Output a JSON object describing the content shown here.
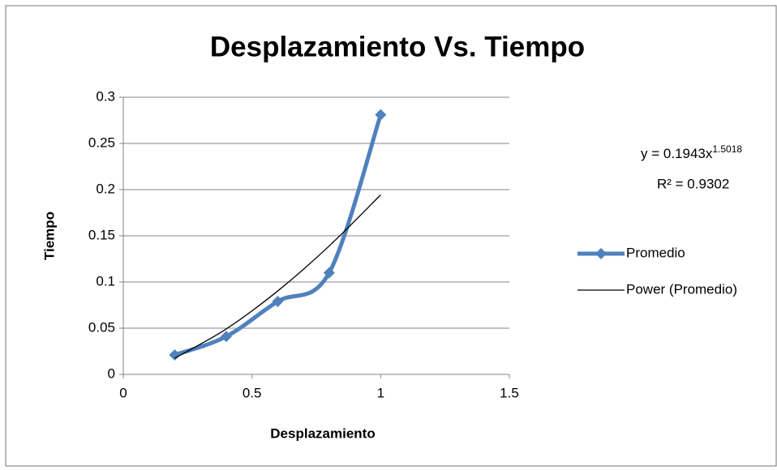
{
  "chart_data": {
    "type": "scatter",
    "title": "Desplazamiento Vs. Tiempo",
    "xlabel": "Desplazamiento",
    "ylabel": "Tiempo",
    "series": [
      {
        "name": "Promedio",
        "color": "#4f81bd",
        "marker": "diamond",
        "smooth": true,
        "x": [
          0.2,
          0.4,
          0.6,
          0.8,
          1.0
        ],
        "values": [
          0.021,
          0.041,
          0.079,
          0.11,
          0.281
        ]
      },
      {
        "name": "Power (Promedio)",
        "color": "#000000",
        "marker": "none",
        "smooth": true,
        "x": [
          0.2,
          0.4,
          0.6,
          0.8,
          1.0
        ],
        "values": [
          0.0174,
          0.0492,
          0.0903,
          0.139,
          0.1943
        ]
      }
    ],
    "annotations": [
      {
        "text": "y = 0.1943x",
        "superscript": "1.5018"
      },
      {
        "text": "R² = 0.9302"
      }
    ],
    "xlim": [
      0,
      1.5
    ],
    "xticks": [
      0,
      0.5,
      1,
      1.5
    ],
    "ylim": [
      0,
      0.3
    ],
    "yticks": [
      0,
      0.05,
      0.1,
      0.15,
      0.2,
      0.25,
      0.3
    ],
    "grid": true,
    "legend": "right"
  }
}
